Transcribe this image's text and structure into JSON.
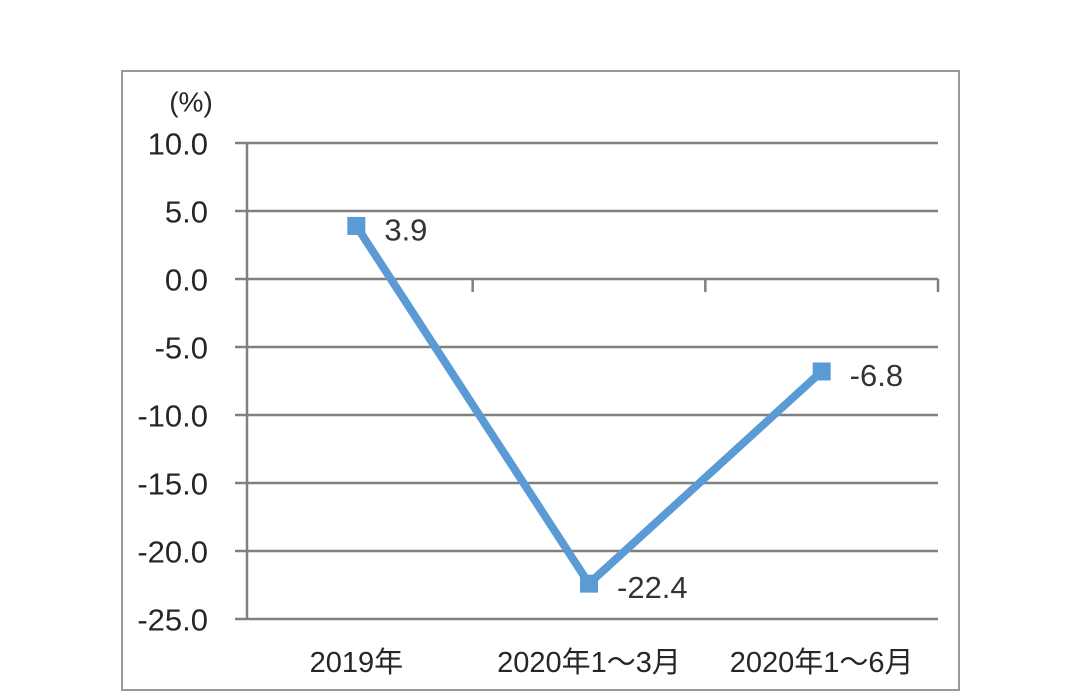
{
  "chart_data": {
    "type": "line",
    "title": "",
    "unit_label": "(%)",
    "categories": [
      "2019年",
      "2020年1～3月",
      "2020年1～6月"
    ],
    "values": [
      3.9,
      -22.4,
      -6.8
    ],
    "data_labels": [
      "3.9",
      "-22.4",
      "-6.8"
    ],
    "y_ticks": [
      10,
      5,
      0,
      -5,
      -10,
      -15,
      -20,
      -25
    ],
    "y_tick_labels": [
      "10.0",
      "5.0",
      "0.0",
      "-5.0",
      "-10.0",
      "-15.0",
      "-20.0",
      "-25.0"
    ],
    "ylim": [
      -25,
      10
    ],
    "xlabel": "",
    "ylabel": "(%)",
    "grid": true,
    "legend_position": "none",
    "marker": "square",
    "colors": {
      "line": "#5B9BD5",
      "marker": "#5B9BD5",
      "gridline": "#808080",
      "axis": "#808080",
      "frame": "#999999",
      "text": "#262626",
      "data_label_text": "#333333",
      "background": "#ffffff"
    }
  }
}
